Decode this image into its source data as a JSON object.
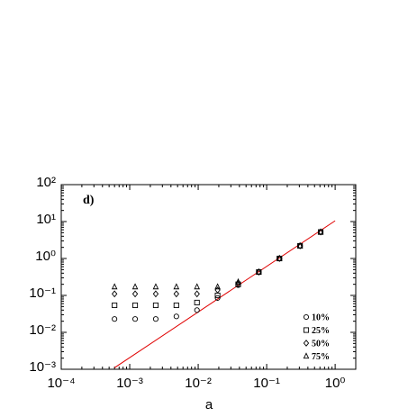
{
  "chart_data": {
    "type": "scatter",
    "annotation": "d)",
    "x_label": "a",
    "xscale": "log",
    "yscale": "log",
    "xlim": [
      0.0001,
      2
    ],
    "ylim": [
      0.001,
      100
    ],
    "xticks": [
      {
        "value": 0.0001,
        "label": "10⁻⁴"
      },
      {
        "value": 0.001,
        "label": "10⁻³"
      },
      {
        "value": 0.01,
        "label": "10⁻²"
      },
      {
        "value": 0.1,
        "label": "10⁻¹"
      },
      {
        "value": 1,
        "label": "10⁰"
      }
    ],
    "yticks": [
      {
        "value": 0.001,
        "label": "10⁻³"
      },
      {
        "value": 0.01,
        "label": "10⁻²"
      },
      {
        "value": 0.1,
        "label": "10⁻¹"
      },
      {
        "value": 1,
        "label": "10⁰"
      },
      {
        "value": 10,
        "label": "10¹"
      },
      {
        "value": 100,
        "label": "10²"
      }
    ],
    "x": [
      0.0006,
      0.0012,
      0.0024,
      0.0048,
      0.0096,
      0.0192,
      0.0384,
      0.0768,
      0.1536,
      0.3072,
      0.6144
    ],
    "series": [
      {
        "name": "10%",
        "marker": "circle",
        "color": "#000000",
        "values": [
          0.023,
          0.023,
          0.023,
          0.027,
          0.04,
          0.085,
          0.19,
          0.43,
          1.0,
          2.2,
          5.2
        ]
      },
      {
        "name": "25%",
        "marker": "square",
        "color": "#000000",
        "values": [
          0.054,
          0.054,
          0.054,
          0.054,
          0.064,
          0.1,
          0.2,
          0.43,
          1.0,
          2.2,
          5.2
        ]
      },
      {
        "name": "50%",
        "marker": "diamond",
        "color": "#000000",
        "values": [
          0.11,
          0.11,
          0.11,
          0.11,
          0.11,
          0.14,
          0.21,
          0.43,
          1.0,
          2.2,
          5.2
        ]
      },
      {
        "name": "75%",
        "marker": "triangle",
        "color": "#000000",
        "values": [
          0.17,
          0.17,
          0.17,
          0.17,
          0.17,
          0.17,
          0.23,
          0.43,
          1.0,
          2.2,
          5.2
        ]
      }
    ],
    "fit_line": {
      "color": "#e00000",
      "x": [
        0.0006,
        1.0
      ],
      "values": [
        0.0011,
        10.5
      ]
    },
    "legend": "lower right"
  }
}
